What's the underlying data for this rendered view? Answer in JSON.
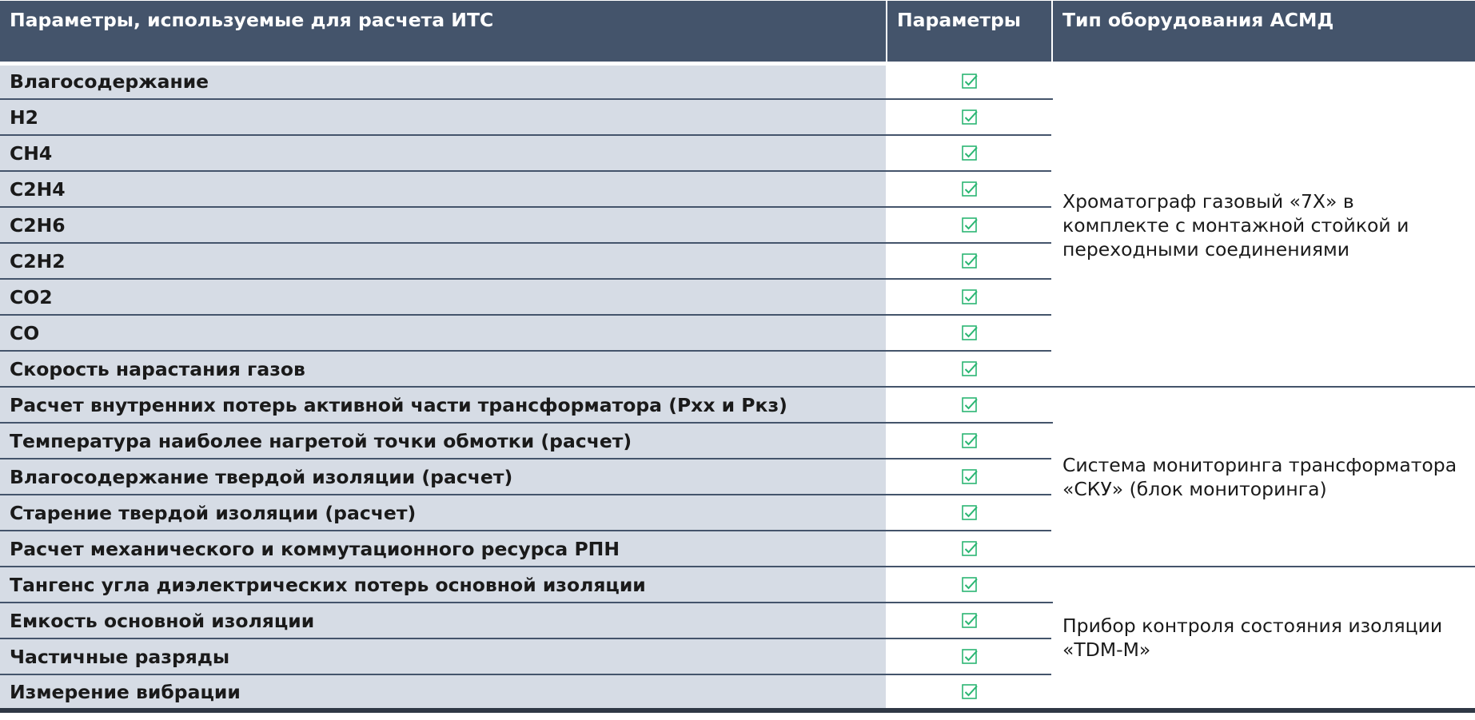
{
  "header": {
    "col_params_used": "Параметры, используемые для расчета ИТС",
    "col_params": "Параметры",
    "col_equipment": "Тип оборудования АСМД"
  },
  "colors": {
    "header_bg": "#44546b",
    "row_bg": "#d6dce5",
    "check_color": "#2bb673"
  },
  "groups": [
    {
      "equipment": "Хроматограф газовый «7Х» в комплекте с монтажной стойкой и переходными соединениями",
      "rows": [
        {
          "label": "Влагосодержание",
          "checked": true
        },
        {
          "label": "H2",
          "checked": true
        },
        {
          "label": "CH4",
          "checked": true
        },
        {
          "label": "C2H4",
          "checked": true
        },
        {
          "label": "C2H6",
          "checked": true
        },
        {
          "label": "C2H2",
          "checked": true
        },
        {
          "label": "CO2",
          "checked": true
        },
        {
          "label": "CO",
          "checked": true
        },
        {
          "label": "Скорость нарастания газов",
          "checked": true
        }
      ]
    },
    {
      "equipment": "Система мониторинга трансформатора «СКУ» (блок мониторинга)",
      "rows": [
        {
          "label": "Расчет внутренних потерь активной части трансформатора (Рхх и Ркз)",
          "checked": true
        },
        {
          "label": "Температура наиболее нагретой точки обмотки (расчет)",
          "checked": true
        },
        {
          "label": "Влагосодержание твердой изоляции (расчет)",
          "checked": true
        },
        {
          "label": "Старение твердой изоляции (расчет)",
          "checked": true
        },
        {
          "label": "Расчет механического и коммутационного ресурса РПН",
          "checked": true
        }
      ]
    },
    {
      "equipment": "Прибор контроля состояния изоляции «TDM-M»",
      "rows": [
        {
          "label": "Тангенс угла диэлектрических потерь основной изоляции",
          "checked": true
        },
        {
          "label": "Емкость основной изоляции",
          "checked": true
        },
        {
          "label": "Частичные разряды",
          "checked": true
        },
        {
          "label": "Измерение вибрации",
          "checked": true
        }
      ]
    }
  ]
}
